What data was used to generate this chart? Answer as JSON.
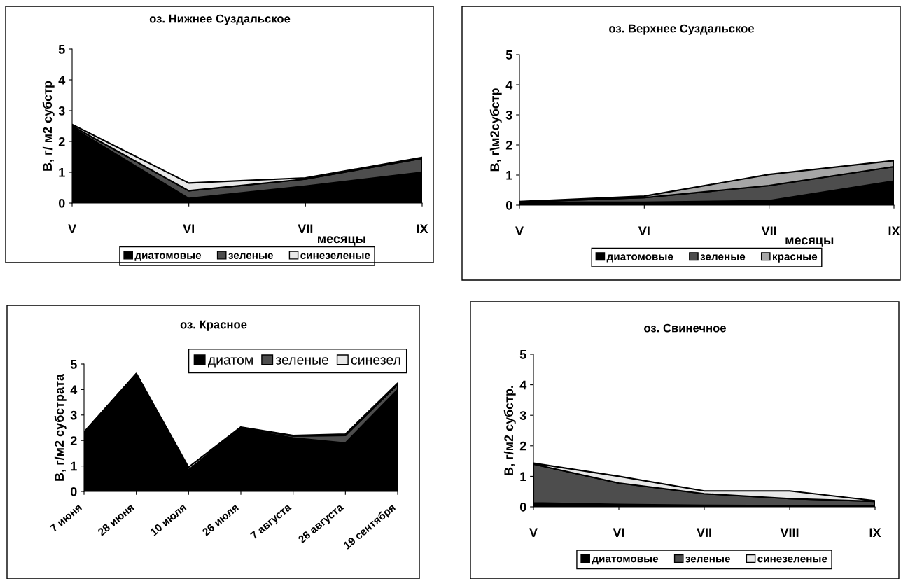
{
  "chart_data": [
    {
      "type": "area",
      "stacked": true,
      "title": "оз. Нижнее Суздальское",
      "xlabel": "месяцы",
      "ylabel": "В, г/ м2 субстр",
      "categories": [
        "V",
        "VI",
        "VII",
        "IX"
      ],
      "ylim": [
        0,
        5
      ],
      "yticks": [
        0,
        1,
        2,
        3,
        4,
        5
      ],
      "legend": "bottom",
      "grid": false,
      "series": [
        {
          "name": "диатомовые",
          "color": "#000000",
          "values": [
            2.45,
            0.15,
            0.55,
            1.0
          ]
        },
        {
          "name": "зеленые",
          "color": "#4d4d4d",
          "values": [
            0.05,
            0.25,
            0.23,
            0.45
          ]
        },
        {
          "name": "синезеленые",
          "color": "#e8e8e8",
          "values": [
            0.05,
            0.25,
            0.04,
            0.03
          ]
        }
      ]
    },
    {
      "type": "area",
      "stacked": true,
      "title": "оз. Верхнее Суздальское",
      "xlabel": "месяцы",
      "ylabel": "В, г\\м2субстр",
      "categories": [
        "V",
        "VI",
        "VII",
        "IX"
      ],
      "ylim": [
        0,
        5
      ],
      "yticks": [
        0,
        1,
        2,
        3,
        4,
        5
      ],
      "legend": "bottom",
      "grid": false,
      "series": [
        {
          "name": "диатомовые",
          "color": "#000000",
          "values": [
            0.1,
            0.1,
            0.15,
            0.8
          ]
        },
        {
          "name": "зеленые",
          "color": "#4d4d4d",
          "values": [
            0.01,
            0.15,
            0.5,
            0.48
          ]
        },
        {
          "name": "красные",
          "color": "#a6a6a6",
          "values": [
            0.01,
            0.05,
            0.37,
            0.2
          ]
        }
      ]
    },
    {
      "type": "area",
      "stacked": true,
      "title": "оз. Красное",
      "ylabel": "В, г/м2 субстрата",
      "categories": [
        "7 июня",
        "28 июня",
        "10 июля",
        "26 июля",
        "7 августа",
        "28 августа",
        "19 сентября"
      ],
      "ylim": [
        0,
        5
      ],
      "yticks": [
        0,
        1,
        2,
        3,
        4,
        5
      ],
      "legend": "top right",
      "grid": false,
      "series": [
        {
          "name": "диатом",
          "color": "#000000",
          "values": [
            2.3,
            4.6,
            0.8,
            2.45,
            2.1,
            1.9,
            4.0
          ]
        },
        {
          "name": "зеленые",
          "color": "#4d4d4d",
          "values": [
            0.02,
            0.02,
            0.05,
            0.05,
            0.08,
            0.3,
            0.2
          ]
        },
        {
          "name": "синезел",
          "color": "#e8e8e8",
          "values": [
            0.01,
            0.01,
            0.1,
            0.03,
            0.02,
            0.05,
            0.05
          ]
        }
      ]
    },
    {
      "type": "area",
      "stacked": true,
      "title": "оз. Свинечное",
      "ylabel": "В, г/м2 субстр.",
      "categories": [
        "V",
        "VI",
        "VII",
        "VIII",
        "IX"
      ],
      "ylim": [
        0,
        5
      ],
      "yticks": [
        0,
        1,
        2,
        3,
        4,
        5
      ],
      "legend": "bottom",
      "grid": false,
      "series": [
        {
          "name": "диатомовые",
          "color": "#000000",
          "values": [
            0.13,
            0.08,
            0.05,
            0.04,
            0.02
          ]
        },
        {
          "name": "зеленые",
          "color": "#4d4d4d",
          "values": [
            1.27,
            0.7,
            0.38,
            0.23,
            0.16
          ]
        },
        {
          "name": "синезеленые",
          "color": "#e8e8e8",
          "values": [
            0.03,
            0.22,
            0.09,
            0.25,
            0.02
          ]
        }
      ]
    }
  ]
}
